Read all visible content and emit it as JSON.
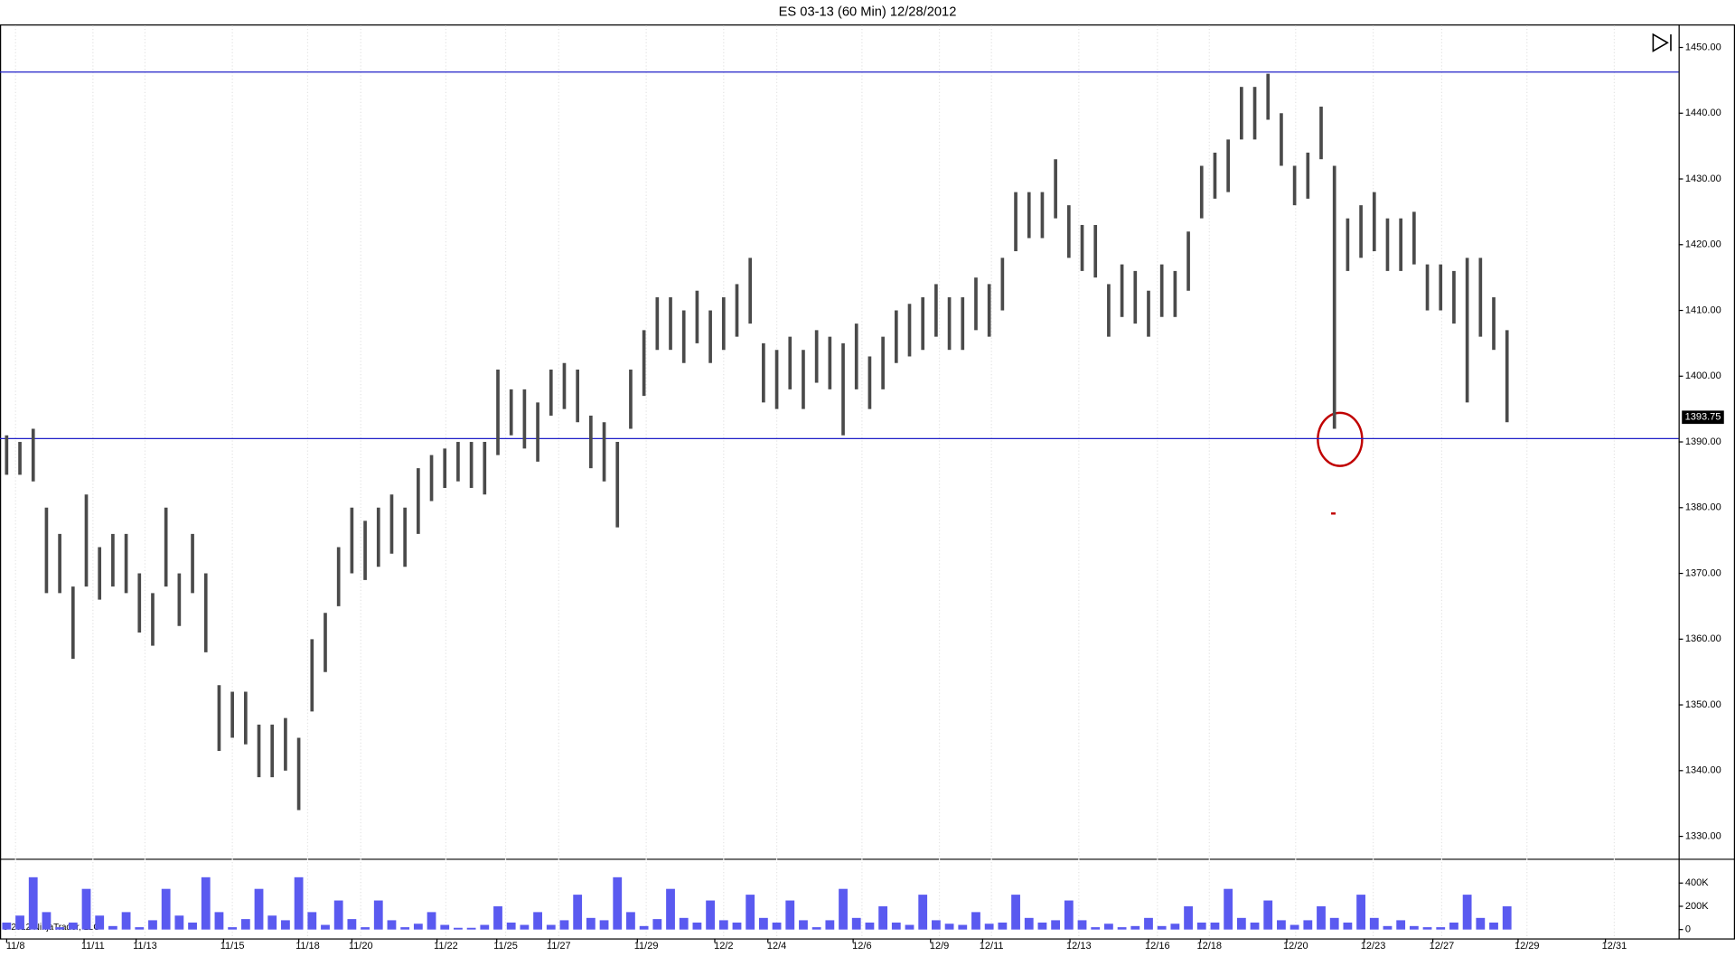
{
  "chart_data": [
    {
      "type": "range",
      "title": "ES 03-13 (60 Min)  12/28/2012",
      "copyright": "© 2012 NinjaTrader, LLC",
      "color": "#4a4a4a",
      "line_color": "#2020c8",
      "grid": true,
      "x": [
        0,
        1,
        2,
        3,
        4,
        5,
        6,
        7,
        8,
        9,
        10,
        11,
        12,
        13,
        14,
        15,
        16,
        17,
        18,
        19,
        20,
        21,
        22,
        23,
        24,
        25,
        26,
        27,
        28,
        29,
        30,
        31,
        32,
        33,
        34,
        35,
        36,
        37,
        38,
        39,
        40,
        41,
        42,
        43,
        44,
        45,
        46,
        47,
        48,
        49,
        50,
        51,
        52,
        53,
        54,
        55,
        56,
        57,
        58,
        59,
        60,
        61,
        62,
        63,
        64,
        65,
        66,
        67,
        68,
        69,
        70,
        71,
        72,
        73,
        74,
        75,
        76,
        77,
        78,
        79,
        80,
        81,
        82,
        83,
        84,
        85,
        86,
        87,
        88,
        89,
        90,
        91,
        92,
        93,
        94,
        95,
        96,
        97,
        98,
        99,
        100,
        101,
        102,
        103,
        104,
        105,
        106,
        107,
        108,
        109,
        110,
        111,
        112,
        113
      ],
      "low": [
        1385,
        1385,
        1384,
        1367,
        1367,
        1357,
        1368,
        1366,
        1368,
        1367,
        1361,
        1359,
        1368,
        1362,
        1367,
        1358,
        1343,
        1345,
        1344,
        1339,
        1339,
        1340,
        1334,
        1349,
        1355,
        1365,
        1370,
        1369,
        1371,
        1373,
        1371,
        1376,
        1381,
        1383,
        1384,
        1383,
        1382,
        1388,
        1391,
        1389,
        1387,
        1394,
        1395,
        1393,
        1386,
        1384,
        1377,
        1392,
        1397,
        1404,
        1404,
        1402,
        1405,
        1402,
        1404,
        1406,
        1408,
        1396,
        1395,
        1398,
        1395,
        1399,
        1398,
        1391,
        1398,
        1395,
        1398,
        1402,
        1403,
        1404,
        1406,
        1404,
        1404,
        1407,
        1406,
        1410,
        1419,
        1421,
        1421,
        1424,
        1418,
        1416,
        1415,
        1406,
        1409,
        1408,
        1406,
        1409,
        1409,
        1413,
        1424,
        1427,
        1428,
        1436,
        1436,
        1439,
        1432,
        1426,
        1427,
        1433,
        1392,
        1416,
        1418,
        1419,
        1416,
        1416,
        1417,
        1410,
        1410,
        1408,
        1396,
        1406,
        1404,
        1393
      ],
      "high": [
        1391,
        1390,
        1392,
        1380,
        1376,
        1368,
        1382,
        1374,
        1376,
        1376,
        1370,
        1367,
        1380,
        1370,
        1376,
        1370,
        1353,
        1352,
        1352,
        1347,
        1347,
        1348,
        1345,
        1360,
        1364,
        1374,
        1380,
        1378,
        1380,
        1382,
        1380,
        1386,
        1388,
        1389,
        1390,
        1390,
        1390,
        1401,
        1398,
        1398,
        1396,
        1401,
        1402,
        1401,
        1394,
        1393,
        1390,
        1401,
        1407,
        1412,
        1412,
        1410,
        1413,
        1410,
        1412,
        1414,
        1418,
        1405,
        1404,
        1406,
        1404,
        1407,
        1406,
        1405,
        1408,
        1403,
        1406,
        1410,
        1411,
        1412,
        1414,
        1412,
        1412,
        1415,
        1414,
        1418,
        1428,
        1428,
        1428,
        1433,
        1426,
        1423,
        1423,
        1414,
        1417,
        1416,
        1413,
        1417,
        1416,
        1422,
        1432,
        1434,
        1436,
        1444,
        1444,
        1446,
        1440,
        1432,
        1434,
        1441,
        1432,
        1424,
        1426,
        1428,
        1424,
        1424,
        1425,
        1417,
        1417,
        1416,
        1418,
        1418,
        1412,
        1407
      ],
      "hlines": [
        1446.25,
        1390.5
      ],
      "last_price": 1393.75,
      "xlim": [
        -0.5,
        125.92
      ],
      "ylim": [
        1326.6,
        1453.5
      ],
      "xticks": [
        {
          "value": 0.67,
          "label": "11/8"
        },
        {
          "value": 6.5,
          "label": "11/11"
        },
        {
          "value": 10.42,
          "label": "11/13"
        },
        {
          "value": 17,
          "label": "11/15"
        },
        {
          "value": 22.67,
          "label": "11/18"
        },
        {
          "value": 26.67,
          "label": "11/20"
        },
        {
          "value": 33.08,
          "label": "11/22"
        },
        {
          "value": 37.58,
          "label": "11/25"
        },
        {
          "value": 41.58,
          "label": "11/27"
        },
        {
          "value": 48.17,
          "label": "11/29"
        },
        {
          "value": 54,
          "label": "12/2"
        },
        {
          "value": 58,
          "label": "12/4"
        },
        {
          "value": 64.42,
          "label": "12/6"
        },
        {
          "value": 70.25,
          "label": "12/9"
        },
        {
          "value": 74.17,
          "label": "12/11"
        },
        {
          "value": 80.75,
          "label": "12/13"
        },
        {
          "value": 86.67,
          "label": "12/16"
        },
        {
          "value": 90.58,
          "label": "12/18"
        },
        {
          "value": 97.08,
          "label": "12/20"
        },
        {
          "value": 102.92,
          "label": "12/23"
        },
        {
          "value": 108.08,
          "label": "12/27"
        },
        {
          "value": 114.5,
          "label": "12/29"
        },
        {
          "value": 121.08,
          "label": "12/31"
        }
      ],
      "yticks": [
        {
          "value": 1330,
          "label": "1330.00"
        },
        {
          "value": 1340,
          "label": "1340.00"
        },
        {
          "value": 1350,
          "label": "1350.00"
        },
        {
          "value": 1360,
          "label": "1360.00"
        },
        {
          "value": 1370,
          "label": "1370.00"
        },
        {
          "value": 1380,
          "label": "1380.00"
        },
        {
          "value": 1390,
          "label": "1390.00"
        },
        {
          "value": 1400,
          "label": "1400.00"
        },
        {
          "value": 1410,
          "label": "1410.00"
        },
        {
          "value": 1420,
          "label": "1420.00"
        },
        {
          "value": 1430,
          "label": "1430.00"
        },
        {
          "value": 1440,
          "label": "1440.00"
        },
        {
          "value": 1450,
          "label": "1450.00"
        }
      ]
    },
    {
      "type": "bar",
      "color": "#5a5af0",
      "values": [
        60000,
        120000,
        450000,
        150000,
        20000,
        60000,
        350000,
        120000,
        30000,
        150000,
        20000,
        80000,
        350000,
        120000,
        60000,
        450000,
        150000,
        20000,
        90000,
        350000,
        120000,
        80000,
        450000,
        150000,
        40000,
        250000,
        90000,
        20000,
        250000,
        80000,
        20000,
        50000,
        150000,
        40000,
        15000,
        15000,
        40000,
        200000,
        60000,
        40000,
        150000,
        40000,
        80000,
        300000,
        100000,
        80000,
        450000,
        150000,
        30000,
        90000,
        350000,
        100000,
        60000,
        250000,
        80000,
        60000,
        300000,
        100000,
        60000,
        250000,
        80000,
        20000,
        80000,
        350000,
        100000,
        60000,
        200000,
        60000,
        40000,
        300000,
        80000,
        50000,
        40000,
        150000,
        50000,
        60000,
        300000,
        100000,
        60000,
        80000,
        250000,
        80000,
        20000,
        50000,
        20000,
        30000,
        100000,
        30000,
        50000,
        200000,
        60000,
        60000,
        350000,
        100000,
        60000,
        250000,
        80000,
        40000,
        80000,
        200000,
        100000,
        60000,
        300000,
        100000,
        30000,
        80000,
        30000,
        20000,
        20000,
        60000,
        300000,
        100000,
        60000,
        200000
      ],
      "ylim": [
        0,
        600000
      ],
      "yticks": [
        0,
        {
          "value": 200000,
          "label": "200K"
        },
        {
          "value": 400000,
          "label": "400K"
        }
      ]
    }
  ]
}
